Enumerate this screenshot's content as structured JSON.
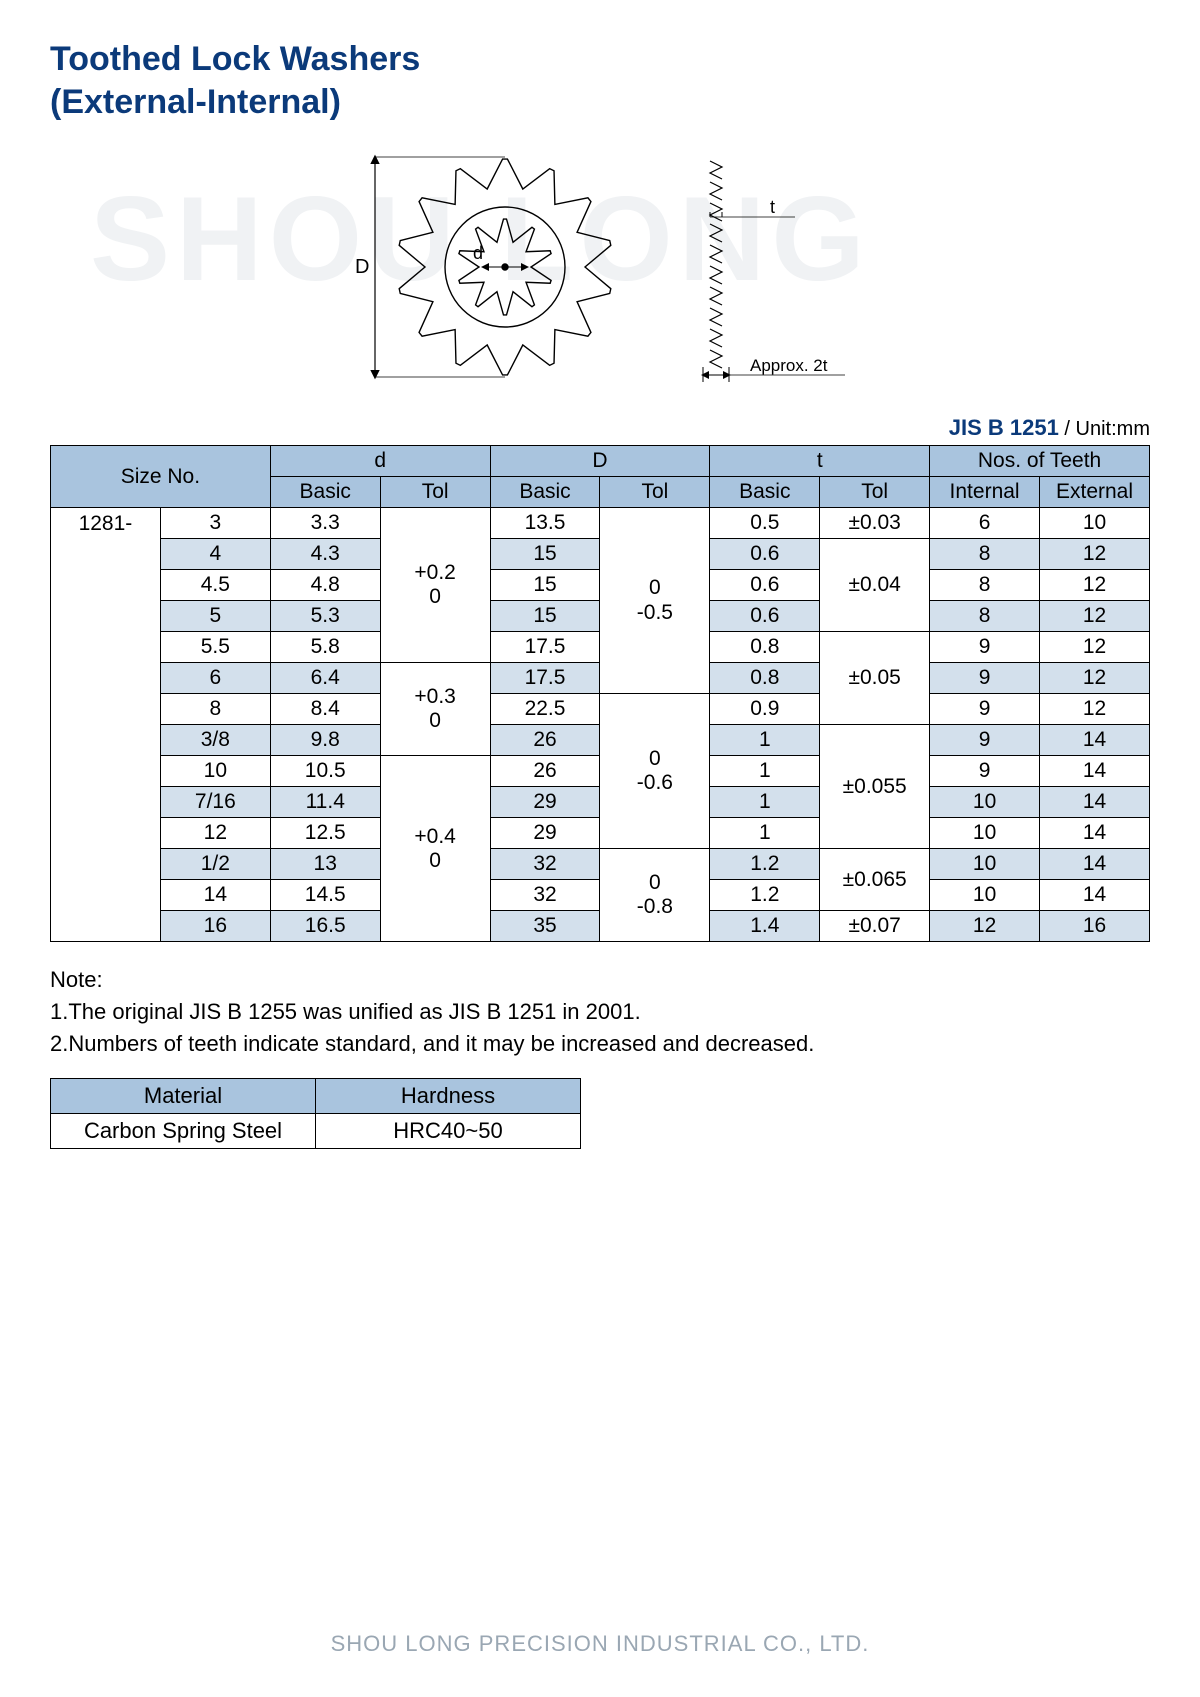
{
  "title_line1": "Toothed Lock Washers",
  "title_line2": "(External-Internal)",
  "watermark": "SHOU LONG",
  "standard": "JIS B 1251",
  "unit_label": " / Unit:mm",
  "diagram": {
    "label_D": "D",
    "label_d": "d",
    "label_t": "t",
    "label_approx": "Approx. 2t"
  },
  "headers": {
    "size": "Size No.",
    "d": "d",
    "D": "D",
    "t": "t",
    "teeth": "Nos. of Teeth",
    "basic": "Basic",
    "tol": "Tol",
    "internal": "Internal",
    "external": "External"
  },
  "prefix": "1281-",
  "rows": [
    {
      "alt": false,
      "size": "3",
      "d": "3.3",
      "D": "13.5",
      "t": "0.5",
      "ti": "6",
      "te": "10"
    },
    {
      "alt": true,
      "size": "4",
      "d": "4.3",
      "D": "15",
      "t": "0.6",
      "ti": "8",
      "te": "12"
    },
    {
      "alt": false,
      "size": "4.5",
      "d": "4.8",
      "D": "15",
      "t": "0.6",
      "ti": "8",
      "te": "12"
    },
    {
      "alt": true,
      "size": "5",
      "d": "5.3",
      "D": "15",
      "t": "0.6",
      "ti": "8",
      "te": "12"
    },
    {
      "alt": false,
      "size": "5.5",
      "d": "5.8",
      "D": "17.5",
      "t": "0.8",
      "ti": "9",
      "te": "12"
    },
    {
      "alt": true,
      "size": "6",
      "d": "6.4",
      "D": "17.5",
      "t": "0.8",
      "ti": "9",
      "te": "12"
    },
    {
      "alt": false,
      "size": "8",
      "d": "8.4",
      "D": "22.5",
      "t": "0.9",
      "ti": "9",
      "te": "12"
    },
    {
      "alt": true,
      "size": "3/8",
      "d": "9.8",
      "D": "26",
      "t": "1",
      "ti": "9",
      "te": "14"
    },
    {
      "alt": false,
      "size": "10",
      "d": "10.5",
      "D": "26",
      "t": "1",
      "ti": "9",
      "te": "14"
    },
    {
      "alt": true,
      "size": "7/16",
      "d": "11.4",
      "D": "29",
      "t": "1",
      "ti": "10",
      "te": "14"
    },
    {
      "alt": false,
      "size": "12",
      "d": "12.5",
      "D": "29",
      "t": "1",
      "ti": "10",
      "te": "14"
    },
    {
      "alt": true,
      "size": "1/2",
      "d": "13",
      "D": "32",
      "t": "1.2",
      "ti": "10",
      "te": "14"
    },
    {
      "alt": false,
      "size": "14",
      "d": "14.5",
      "D": "32",
      "t": "1.2",
      "ti": "10",
      "te": "14"
    },
    {
      "alt": true,
      "size": "16",
      "d": "16.5",
      "D": "35",
      "t": "1.4",
      "ti": "12",
      "te": "16"
    }
  ],
  "d_tol": [
    {
      "span": 5,
      "text": "+0.2\n0"
    },
    {
      "span": 3,
      "text": "+0.3\n0"
    },
    {
      "span": 6,
      "text": "+0.4\n0"
    }
  ],
  "D_tol": [
    {
      "span": 6,
      "text": "0\n-0.5"
    },
    {
      "span": 5,
      "text": "0\n-0.6"
    },
    {
      "span": 3,
      "text": "0\n-0.8"
    }
  ],
  "t_tol": [
    {
      "span": 1,
      "text": "±0.03"
    },
    {
      "span": 3,
      "text": "±0.04"
    },
    {
      "span": 3,
      "text": "±0.05"
    },
    {
      "span": 4,
      "text": "±0.055"
    },
    {
      "span": 2,
      "text": "±0.065"
    },
    {
      "span": 1,
      "text": "±0.07"
    }
  ],
  "note_label": "Note:",
  "note1": "1.The original JIS B 1255 was unified as JIS B 1251 in 2001.",
  "note2": "2.Numbers of teeth indicate standard, and it may be increased and decreased.",
  "mat_headers": {
    "material": "Material",
    "hardness": "Hardness"
  },
  "mat_row": {
    "material": "Carbon Spring Steel",
    "hardness": "HRC40~50"
  },
  "footer": "SHOU LONG PRECISION INDUSTRIAL CO., LTD."
}
